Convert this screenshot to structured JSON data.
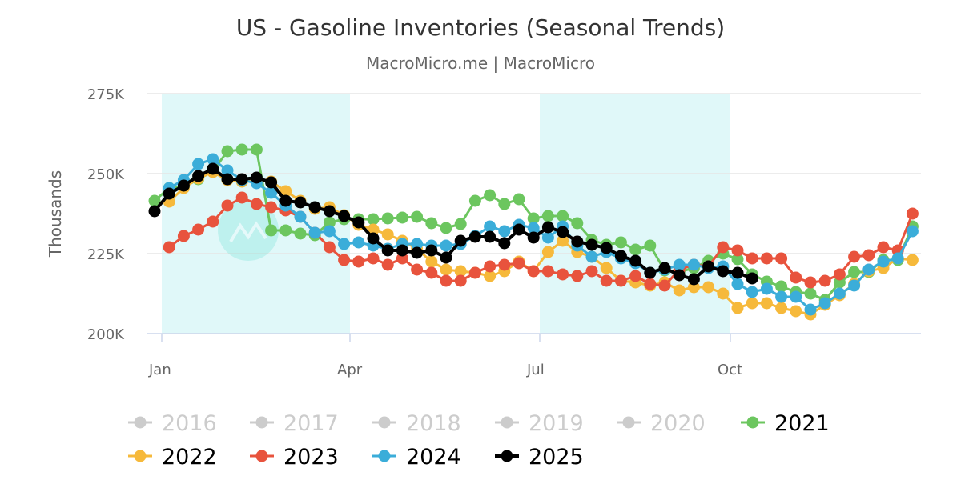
{
  "chart_data": {
    "type": "line",
    "title": "US - Gasoline Inventories (Seasonal Trends)",
    "subtitle": "MacroMicro.me | MacroMicro",
    "ylabel": "Thousands",
    "xlabel": "",
    "ylim": [
      200,
      275
    ],
    "y_ticks": [
      "200K",
      "225K",
      "250K",
      "275K"
    ],
    "y_tick_values": [
      200,
      225,
      250,
      275
    ],
    "x_ticks": [
      "Jan",
      "Apr",
      "Jul",
      "Oct"
    ],
    "grid": true,
    "legend_placement": "bottom",
    "shaded_quarters": [
      "Jan",
      "Jul"
    ],
    "colors": {
      "band": "#e0f8f9",
      "grid": "#e6e6e6",
      "inactive": "#cccccc"
    },
    "series": [
      {
        "name": "2016",
        "visible": false,
        "color": "#cccccc",
        "values": []
      },
      {
        "name": "2017",
        "visible": false,
        "color": "#cccccc",
        "values": []
      },
      {
        "name": "2018",
        "visible": false,
        "color": "#cccccc",
        "values": []
      },
      {
        "name": "2019",
        "visible": false,
        "color": "#cccccc",
        "values": []
      },
      {
        "name": "2020",
        "visible": false,
        "color": "#cccccc",
        "values": []
      },
      {
        "name": "2021",
        "visible": true,
        "color": "#6cc65f",
        "values": [
          241.5,
          245.5,
          245.75,
          248.25,
          250.75,
          257,
          257.5,
          257.5,
          232.25,
          232.25,
          231.25,
          230.75,
          234.75,
          235.75,
          235.75,
          235.75,
          236,
          236.25,
          236.5,
          234.5,
          233,
          234.25,
          241.5,
          243.25,
          240.5,
          242,
          236,
          236.75,
          236.75,
          234.5,
          229.25,
          227.75,
          228.5,
          226.25,
          227.5,
          219.75,
          219.25,
          220.5,
          222.75,
          225,
          223.25,
          218.5,
          216.25,
          214.75,
          213,
          212.5,
          210.5,
          216,
          219.25,
          219.25,
          223,
          223,
          233.5
        ]
      },
      {
        "name": "2022",
        "visible": true,
        "color": "#f6b93b",
        "values": [
          null,
          241.25,
          245.5,
          248.5,
          250.5,
          248,
          247.5,
          248,
          247.5,
          244.5,
          241.5,
          239,
          239.5,
          237,
          234,
          232.5,
          231,
          229,
          226.5,
          222.5,
          220,
          219.5,
          219,
          218,
          219.5,
          222.5,
          219.5,
          225.5,
          229,
          225.5,
          224,
          220.5,
          216.5,
          216,
          215,
          216,
          213.5,
          214.5,
          214.5,
          212.5,
          208,
          209.5,
          209.5,
          208,
          207,
          206,
          209,
          212,
          215.5,
          219.5,
          220.5,
          223.5,
          223
        ]
      },
      {
        "name": "2023",
        "visible": true,
        "color": "#e8533d",
        "values": [
          null,
          227,
          230.5,
          232.5,
          235,
          240,
          242.5,
          240.5,
          239.5,
          238.5,
          236.5,
          231.5,
          227,
          223,
          222.5,
          223.5,
          221.5,
          223.5,
          220,
          219,
          216.5,
          216.5,
          219,
          221,
          221.5,
          222,
          219.5,
          219.5,
          218.5,
          218,
          219.5,
          216.5,
          216.5,
          218,
          215.5,
          215,
          220,
          221.5,
          221,
          227,
          226,
          223.5,
          223.5,
          223.5,
          217.5,
          216,
          216.5,
          218.5,
          224,
          224.5,
          227,
          226,
          237.5
        ]
      },
      {
        "name": "2024",
        "visible": true,
        "color": "#3badd9",
        "values": [
          null,
          245.5,
          248,
          253,
          254.5,
          251,
          248,
          247,
          244,
          240,
          236.5,
          231.5,
          232,
          228,
          228.5,
          227.5,
          226.5,
          228,
          228,
          227.5,
          227.5,
          228,
          230.5,
          233.5,
          232,
          234,
          233,
          230,
          233.5,
          227.5,
          224,
          225.5,
          223.5,
          222,
          219,
          220,
          221.5,
          221.5,
          220.5,
          221,
          215.5,
          213,
          214,
          211.5,
          211.5,
          207.5,
          209.5,
          212.5,
          215,
          220,
          222.5,
          223.5,
          232
        ]
      },
      {
        "name": "2025",
        "visible": true,
        "color": "#000000",
        "values": [
          238.25,
          243.75,
          246.25,
          249.25,
          251.5,
          248.25,
          248.25,
          248.75,
          247.25,
          241.5,
          241,
          239.5,
          238.25,
          236.75,
          234.75,
          229.75,
          226,
          226,
          225.25,
          226,
          223.75,
          229,
          230.25,
          230.25,
          228.25,
          232.5,
          230,
          233.25,
          231.75,
          228.75,
          227.75,
          226.75,
          224.25,
          222.75,
          219,
          220.5,
          218.25,
          217,
          221,
          219.5,
          219,
          217.25
        ]
      }
    ]
  }
}
